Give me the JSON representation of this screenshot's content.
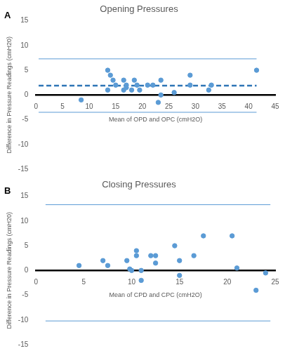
{
  "chart_data": [
    {
      "type": "scatter",
      "title": "Opening Pressures",
      "panel_label": "A",
      "x_label": "Mean of OPD and OPC (cmH2O)",
      "y_label": "Difference in Pressure Readings (cmH20)",
      "xlim": [
        0,
        45
      ],
      "xticks": [
        0,
        5,
        10,
        15,
        20,
        25,
        30,
        35,
        40,
        45
      ],
      "ylim": [
        -15,
        15
      ],
      "yticks": [
        -15,
        -10,
        -5,
        0,
        5,
        10,
        15
      ],
      "grid": false,
      "series": [
        {
          "type": "scatter",
          "color": "#5b9bd5",
          "marker": "circle",
          "x": [
            8.5,
            13.5,
            13.5,
            14,
            14.5,
            15,
            16.5,
            16.5,
            17,
            17,
            18,
            18.5,
            19,
            19.5,
            21,
            22,
            23,
            23.5,
            23.5,
            26,
            29,
            29,
            32.5,
            33,
            41.5
          ],
          "values": [
            -1,
            1,
            5,
            4,
            3,
            2,
            1,
            3,
            2,
            1.5,
            1,
            3,
            2,
            1,
            2,
            2,
            -1.5,
            3,
            0,
            0.5,
            2,
            4,
            1,
            2,
            5
          ]
        },
        {
          "type": "line",
          "color": "#5b9bd5",
          "line_style": "solid",
          "x": [
            0.5,
            41.5
          ],
          "values": [
            7.3,
            7.3
          ]
        },
        {
          "type": "line",
          "color": "#2e75b6",
          "line_style": "dashed",
          "x": [
            0.5,
            41.5
          ],
          "values": [
            1.9,
            1.9
          ]
        },
        {
          "type": "line",
          "color": "#5b9bd5",
          "line_style": "solid",
          "x": [
            0.5,
            41.5
          ],
          "values": [
            -3.5,
            -3.5
          ]
        }
      ]
    },
    {
      "type": "scatter",
      "title": "Closing Pressures",
      "panel_label": "B",
      "x_label": "Mean of CPD and CPC (cmH2O)",
      "y_label": "Difference in Pressure Readings (cmH20)",
      "xlim": [
        0,
        25
      ],
      "xticks": [
        0,
        5,
        10,
        15,
        20,
        25
      ],
      "ylim": [
        -15,
        15
      ],
      "yticks": [
        -15,
        -10,
        -5,
        0,
        5,
        10,
        15
      ],
      "grid": false,
      "series": [
        {
          "type": "scatter",
          "color": "#5b9bd5",
          "marker": "circle",
          "x": [
            4.5,
            7,
            7.5,
            9.5,
            9.8,
            10,
            10.5,
            10.5,
            11,
            11,
            12,
            12.5,
            12.5,
            14.5,
            15,
            15,
            16.5,
            17.5,
            20.5,
            21,
            23,
            24
          ],
          "values": [
            1,
            2,
            1,
            2,
            0.3,
            0,
            4,
            3,
            0,
            -2,
            3,
            1.5,
            3,
            5,
            2,
            -1,
            3,
            7,
            7,
            0.5,
            -4,
            -0.5
          ]
        },
        {
          "type": "line",
          "color": "#5b9bd5",
          "line_style": "solid",
          "x": [
            1,
            24.5
          ],
          "values": [
            13.3,
            13.3
          ]
        },
        {
          "type": "line",
          "color": "#5b9bd5",
          "line_style": "solid",
          "x": [
            1,
            24.5
          ],
          "values": [
            -10.2,
            -10.2
          ]
        }
      ]
    }
  ]
}
